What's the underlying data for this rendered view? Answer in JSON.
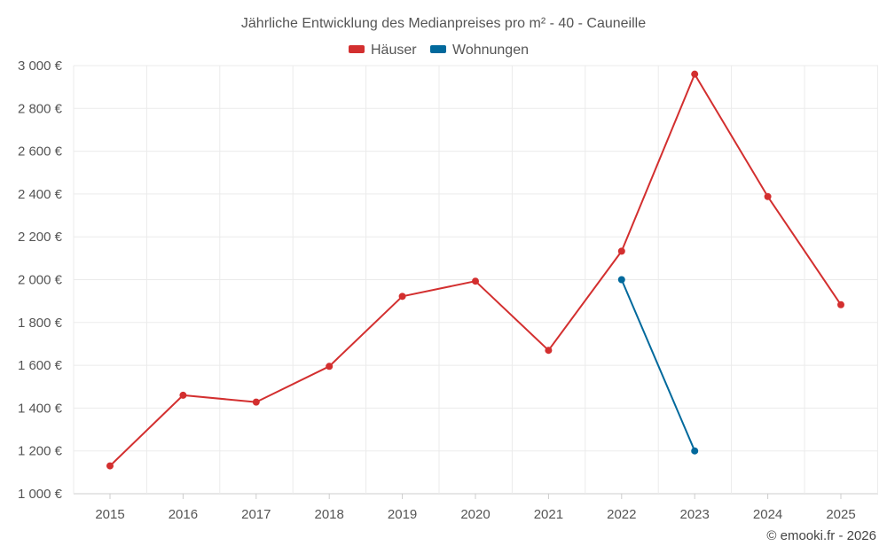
{
  "chart_data": {
    "type": "line",
    "title": "Jährliche Entwicklung des Medianpreises pro m² - 40 - Cauneille",
    "categories": [
      "2015",
      "2016",
      "2017",
      "2018",
      "2019",
      "2020",
      "2021",
      "2022",
      "2023",
      "2024",
      "2025"
    ],
    "ylim": [
      1000,
      3000
    ],
    "yticks": [
      1000,
      1200,
      1400,
      1600,
      1800,
      2000,
      2200,
      2400,
      2600,
      2800,
      3000
    ],
    "ytick_labels": [
      "1 000 €",
      "1 200 €",
      "1 400 €",
      "1 600 €",
      "1 800 €",
      "2 000 €",
      "2 200 €",
      "2 400 €",
      "2 600 €",
      "2 800 €",
      "3 000 €"
    ],
    "grid": true,
    "legend_position": "top-center",
    "series": [
      {
        "name": "Häuser",
        "color": "#d32f2f",
        "values": [
          1130,
          1460,
          1428,
          1595,
          1922,
          1993,
          1670,
          2133,
          2960,
          2388,
          1883
        ]
      },
      {
        "name": "Wohnungen",
        "color": "#01699c",
        "values": [
          null,
          null,
          null,
          null,
          null,
          null,
          null,
          2000,
          1200,
          null,
          null
        ]
      }
    ]
  },
  "credit": "© emooki.fr - 2026"
}
